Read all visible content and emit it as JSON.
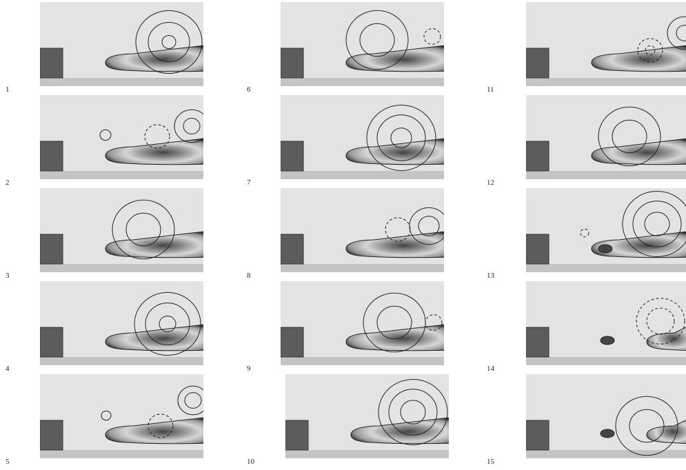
{
  "panels": [
    {
      "label": "1"
    },
    {
      "label": "2"
    },
    {
      "label": "3"
    },
    {
      "label": "4"
    },
    {
      "label": "5"
    },
    {
      "label": "6"
    },
    {
      "label": "7"
    },
    {
      "label": "8"
    },
    {
      "label": "9"
    },
    {
      "label": "10"
    },
    {
      "label": "11"
    },
    {
      "label": "12"
    },
    {
      "label": "13"
    },
    {
      "label": "14"
    },
    {
      "label": "15"
    }
  ]
}
